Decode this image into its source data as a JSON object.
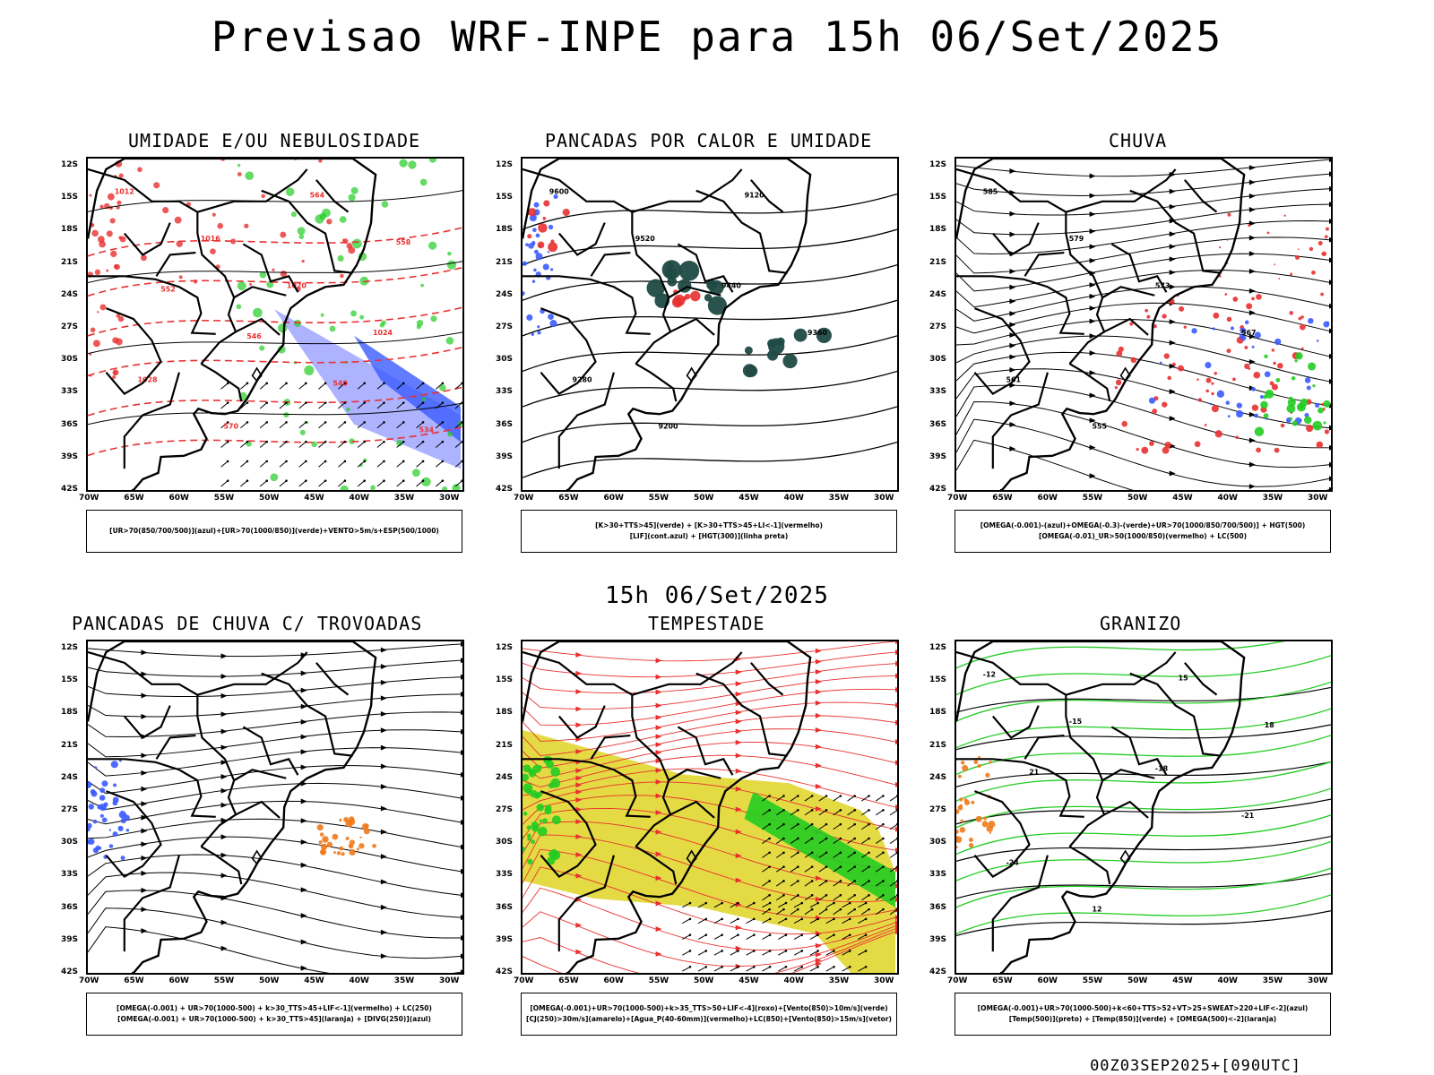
{
  "header": {
    "title": "Previsao WRF-INPE  para 15h 06/Set/2025",
    "mid_label": "15h 06/Set/2025",
    "run_info": "00Z03SEP2025+[090UTC]"
  },
  "axes": {
    "lat_labels": [
      "12S",
      "15S",
      "18S",
      "21S",
      "24S",
      "27S",
      "30S",
      "33S",
      "36S",
      "39S",
      "42S"
    ],
    "lon_labels": [
      "70W",
      "65W",
      "60W",
      "55W",
      "50W",
      "45W",
      "40W",
      "35W",
      "30W"
    ]
  },
  "colors": {
    "blue": "#3b5bff",
    "light_blue": "#9aa0ff",
    "green": "#22cc22",
    "red": "#e83030",
    "orange": "#f07a1a",
    "yellow": "#e3d83a",
    "dark_teal": "#1f4a44",
    "black": "#000000"
  },
  "panels": [
    {
      "title": "UMIDADE E/OU NEBULOSIDADE",
      "legend": [
        "[UR>70(850/700/500)](azul)+[UR>70(1000/850)](verde)+VENTO>5m/s+ESP(500/1000)"
      ],
      "contour_labels": [
        "1012",
        "1016",
        "1020",
        "1024",
        "1028",
        "570",
        "564",
        "558",
        "552",
        "546",
        "540",
        "534"
      ]
    },
    {
      "title": "PANCADAS POR CALOR E UMIDADE",
      "legend": [
        "[K>30+TTS>45](verde) + [K>30+TTS>45+LI<-1](vermelho)",
        "[LIF](cont.azul) + [HGT(300)](linha preta)"
      ],
      "contour_labels": [
        "9600",
        "9520",
        "9440",
        "9360",
        "9280",
        "9200",
        "9120"
      ]
    },
    {
      "title": "CHUVA",
      "legend": [
        "[OMEGA(-0.001)-(azul)+OMEGA(-0.3)-(verde)+UR>70(1000/850/700/500)] + HGT(500)",
        "[OMEGA(-0.01)_UR>50(1000/850)(vermelho) + LC(500)"
      ],
      "contour_labels": [
        "585",
        "579",
        "573",
        "567",
        "561",
        "555"
      ]
    },
    {
      "title": "PANCADAS DE CHUVA C/ TROVOADAS",
      "legend": [
        "[OMEGA(-0.001) + UR>70(1000-500) + k>30_TTS>45+LIF<-1](vermelho) + LC(250)",
        "[OMEGA(-0.001) + UR>70(1000-500) + k>30_TTS>45](laranja) + [DIVG(250)](azul)"
      ],
      "contour_labels": []
    },
    {
      "title": "TEMPESTADE",
      "legend": [
        "[OMEGA(-0.001)+UR>70(1000-500)+k>35_TTS>50+LIF<-4](roxo)+[Vento(850)>10m/s](verde)",
        "[CJ(250)>30m/s](amarelo)+[Agua_P(40-60mm)](vermelho)+LC(850)+[Vento(850)>15m/s](vetor)"
      ],
      "contour_labels": []
    },
    {
      "title": "GRANIZO",
      "legend": [
        "[OMEGA(-0.001)+UR>70(1000-500)+k<60+TTS>52+VT>25+SWEAT>220+LIF<-2](azul)",
        "[Temp(500)](preto) + [Temp(850)](verde) + [OMEGA(500)<-2](laranja)"
      ],
      "contour_labels": [
        "-12",
        "-15",
        "-18",
        "-21",
        "-24",
        "12",
        "15",
        "18",
        "21"
      ]
    }
  ]
}
